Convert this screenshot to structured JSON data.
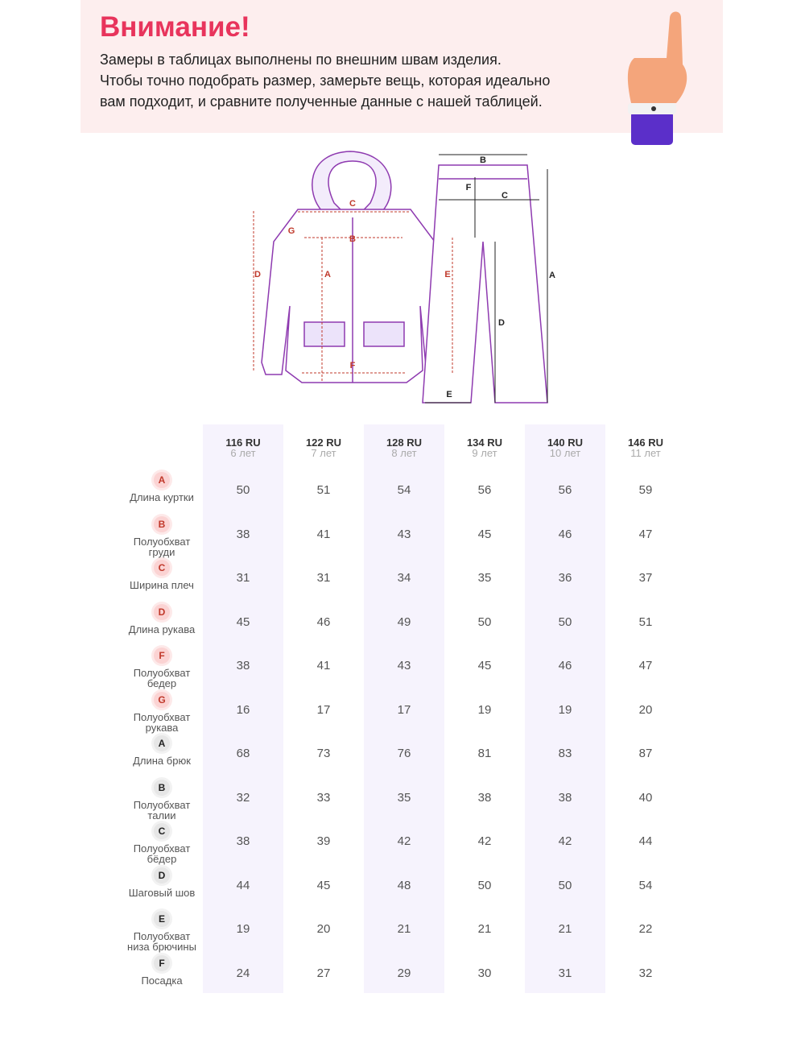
{
  "notice": {
    "title": "Внимание!",
    "lines": [
      "Замеры в таблицах выполнены по внешним швам изделия.",
      "Чтобы точно подобрать размер, замерьте вещь, которая идеально",
      "вам подходит, и сравните полученные данные с нашей таблицей."
    ]
  },
  "diagram": {
    "jacket_labels": [
      "C",
      "G",
      "B",
      "D",
      "A",
      "E",
      "F"
    ],
    "pants_labels": [
      "B",
      "F",
      "C",
      "A",
      "D",
      "E"
    ]
  },
  "table": {
    "sizes": [
      {
        "size": "116 RU",
        "age": "6 лет"
      },
      {
        "size": "122 RU",
        "age": "7 лет"
      },
      {
        "size": "128 RU",
        "age": "8 лет"
      },
      {
        "size": "134 RU",
        "age": "9 лет"
      },
      {
        "size": "140 RU",
        "age": "10 лет"
      },
      {
        "size": "146 RU",
        "age": "11 лет"
      }
    ],
    "jacket_rows": [
      {
        "letter": "A",
        "label": "Длина куртки",
        "values": [
          50,
          51,
          54,
          56,
          56,
          59
        ]
      },
      {
        "letter": "B",
        "label": "Полуобхват груди",
        "values": [
          38,
          41,
          43,
          45,
          46,
          47
        ]
      },
      {
        "letter": "C",
        "label": "Ширина плеч",
        "values": [
          31,
          31,
          34,
          35,
          36,
          37
        ]
      },
      {
        "letter": "D",
        "label": "Длина рукава",
        "values": [
          45,
          46,
          49,
          50,
          50,
          51
        ]
      },
      {
        "letter": "F",
        "label": "Полуобхват бедер",
        "values": [
          38,
          41,
          43,
          45,
          46,
          47
        ]
      },
      {
        "letter": "G",
        "label": "Полуобхват рукава",
        "values": [
          16,
          17,
          17,
          19,
          19,
          20
        ]
      }
    ],
    "pants_rows": [
      {
        "letter": "A",
        "label": "Длина брюк",
        "values": [
          68,
          73,
          76,
          81,
          83,
          87
        ]
      },
      {
        "letter": "B",
        "label": "Полуобхват талии",
        "values": [
          32,
          33,
          35,
          38,
          38,
          40
        ]
      },
      {
        "letter": "C",
        "label": "Полуобхват бёдер",
        "values": [
          38,
          39,
          42,
          42,
          42,
          44
        ]
      },
      {
        "letter": "D",
        "label": "Шаговый шов",
        "values": [
          44,
          45,
          48,
          50,
          50,
          54
        ]
      },
      {
        "letter": "E",
        "label": "Полуобхват низа брючины",
        "values": [
          19,
          20,
          21,
          21,
          21,
          22
        ]
      },
      {
        "letter": "F",
        "label": "Посадка",
        "values": [
          24,
          27,
          29,
          30,
          31,
          32
        ]
      }
    ]
  }
}
